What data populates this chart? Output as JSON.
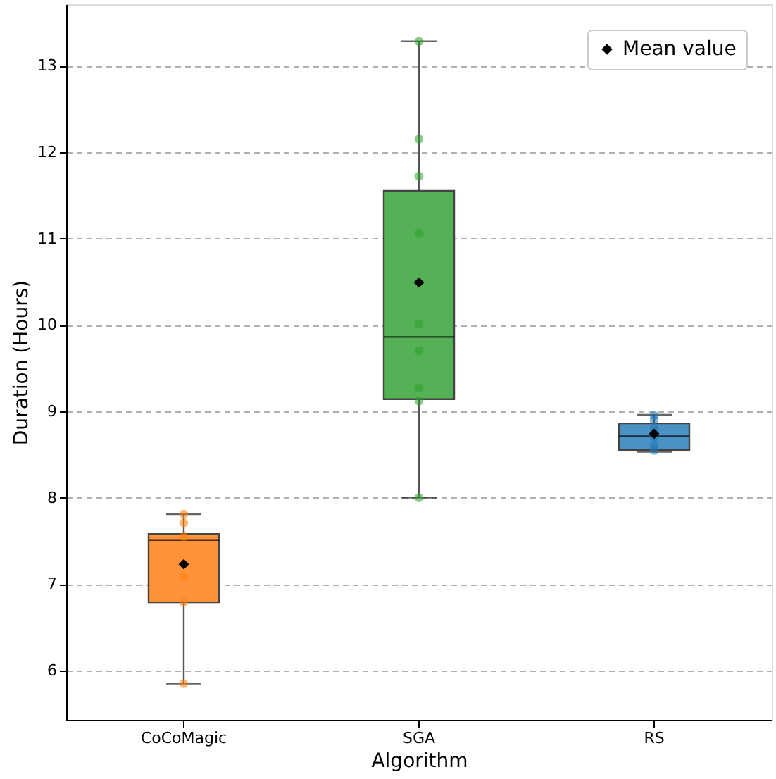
{
  "chart_data": {
    "type": "box",
    "categories": [
      "CoCoMagic",
      "SGA",
      "RS"
    ],
    "xlabel": "Algorithm",
    "ylabel": "Duration (Hours)",
    "ylim": [
      5.43,
      13.71
    ],
    "yticks": [
      6,
      7,
      8,
      9,
      10,
      11,
      12,
      13
    ],
    "grid": "y",
    "legend": "top right",
    "colors": [
      "#fe9339",
      "#55b155",
      "#4a92c6"
    ],
    "boxes": [
      {
        "low": 5.85,
        "q1": 6.79,
        "median": 7.51,
        "q3": 7.58,
        "high": 7.81
      },
      {
        "low": 8.0,
        "q1": 9.14,
        "median": 9.86,
        "q3": 11.55,
        "high": 13.28
      },
      {
        "low": 8.53,
        "q1": 8.55,
        "median": 8.71,
        "q3": 8.86,
        "high": 8.96
      }
    ],
    "series": [
      {
        "type": "scatter",
        "color": "#ff7f0e",
        "x": [
          "CoCoMagic",
          "CoCoMagic",
          "CoCoMagic",
          "CoCoMagic",
          "CoCoMagic",
          "CoCoMagic",
          "CoCoMagic",
          "CoCoMagic"
        ],
        "values": [
          7.81,
          7.71,
          null,
          null,
          7.08,
          6.79,
          5.85,
          7.55
        ]
      },
      {
        "type": "scatter",
        "color": "#2ca02c",
        "x": [
          "SGA",
          "SGA",
          "SGA",
          "SGA",
          "SGA",
          "SGA",
          "SGA",
          "SGA",
          "SGA",
          "SGA"
        ],
        "values": [
          13.28,
          12.15,
          11.72,
          11.06,
          10.01,
          9.7,
          9.27,
          null,
          8.0,
          9.12
        ]
      },
      {
        "type": "scatter",
        "color": "#1f77b4",
        "x": [
          "RS",
          "RS",
          "RS",
          "RS",
          "RS",
          "RS",
          "RS"
        ],
        "values": [
          8.95,
          8.9,
          8.8,
          null,
          8.7,
          8.6,
          8.55
        ]
      },
      {
        "type": "scatter",
        "name": "Mean value",
        "color": "#000000",
        "marker": "diamond",
        "x": [
          "CoCoMagic",
          "SGA",
          "RS"
        ],
        "values": [
          7.23,
          10.49,
          8.74
        ]
      }
    ]
  }
}
